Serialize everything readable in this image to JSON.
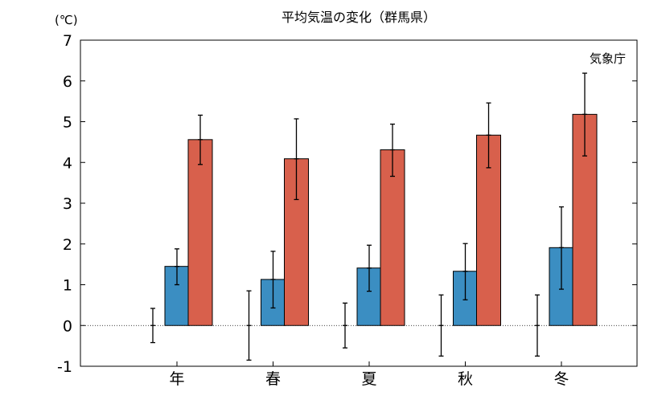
{
  "chart_data": {
    "type": "bar",
    "title": "平均気温の変化（群馬県）",
    "unit_label": "(℃)",
    "source": "気象庁",
    "categories": [
      "年",
      "春",
      "夏",
      "秋",
      "冬"
    ],
    "ylim": [
      -1,
      7
    ],
    "yticks": [
      -1,
      0,
      1,
      2,
      3,
      4,
      5,
      6,
      7
    ],
    "grid": false,
    "series": [
      {
        "values": [
          0,
          0,
          0,
          0,
          0
        ],
        "err_low": [
          -0.42,
          -0.85,
          -0.55,
          -0.75,
          -0.75
        ],
        "err_high": [
          0.42,
          0.85,
          0.55,
          0.75,
          0.75
        ],
        "color": "",
        "bar": false
      },
      {
        "values": [
          1.45,
          1.13,
          1.41,
          1.33,
          1.91
        ],
        "err_low": [
          1.0,
          0.43,
          0.84,
          0.63,
          0.89
        ],
        "err_high": [
          1.88,
          1.82,
          1.97,
          2.01,
          2.91
        ],
        "color": "#3b8ec2",
        "bar": true
      },
      {
        "values": [
          4.56,
          4.09,
          4.31,
          4.67,
          5.18
        ],
        "err_low": [
          3.95,
          3.09,
          3.66,
          3.87,
          4.16
        ],
        "err_high": [
          5.16,
          5.07,
          4.94,
          5.46,
          6.19
        ],
        "color": "#d8604c",
        "bar": true
      }
    ]
  }
}
